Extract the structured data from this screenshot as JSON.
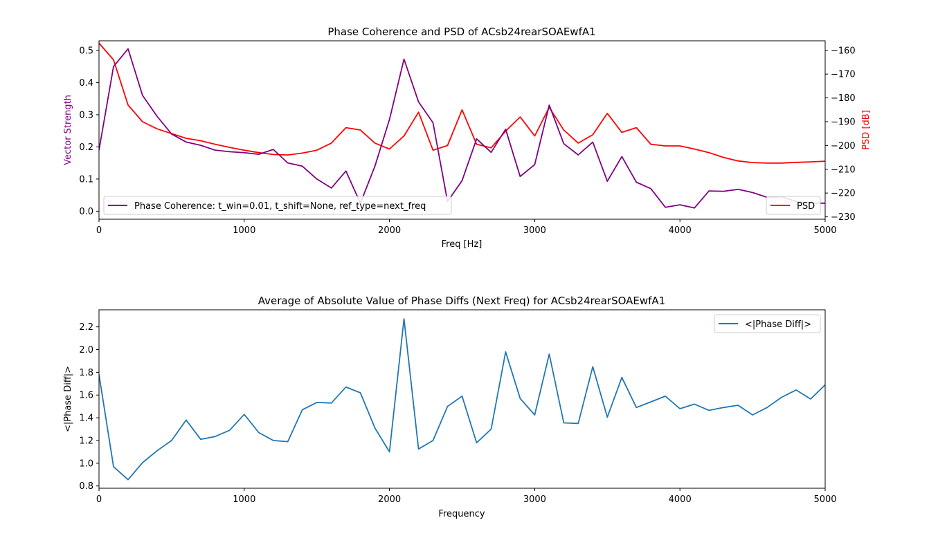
{
  "chart_data": [
    {
      "type": "line",
      "title": "Phase Coherence and PSD of ACsb24rearSOAEwfA1",
      "xlabel": "Freq [Hz]",
      "ylabel": "Vector Strength",
      "ylabel_right": "PSD [dB]",
      "xlim": [
        0,
        5000
      ],
      "ylim": [
        -0.025,
        0.53
      ],
      "ylim_right": [
        -231,
        -156
      ],
      "x_ticks": [
        0,
        1000,
        2000,
        3000,
        4000,
        5000
      ],
      "y_ticks": [
        0.0,
        0.1,
        0.2,
        0.3,
        0.4,
        0.5
      ],
      "y_ticks_right": [
        -160,
        -170,
        -180,
        -190,
        -200,
        -210,
        -220,
        -230
      ],
      "grid": false,
      "colors": {
        "coherence": "#800080",
        "psd": "#ff0000",
        "left_axis_label": "#800080",
        "right_axis_label": "#ff0000"
      },
      "series": [
        {
          "name": "Phase Coherence: t_win=0.01, t_shift=None, ref_type=next_freq",
          "axis": "left",
          "color": "#800080",
          "legend_loc": "lower left",
          "x": [
            0,
            100,
            200,
            300,
            400,
            500,
            600,
            700,
            800,
            900,
            1000,
            1100,
            1200,
            1300,
            1400,
            1500,
            1600,
            1700,
            1800,
            1900,
            2000,
            2100,
            2200,
            2300,
            2400,
            2500,
            2600,
            2700,
            2800,
            2900,
            3000,
            3100,
            3200,
            3300,
            3400,
            3500,
            3600,
            3700,
            3800,
            3900,
            4000,
            4100,
            4200,
            4300,
            4400,
            4500,
            4600,
            4700,
            4800,
            4900,
            5000
          ],
          "values": [
            0.19,
            0.45,
            0.505,
            0.36,
            0.295,
            0.24,
            0.215,
            0.205,
            0.19,
            0.185,
            0.182,
            0.177,
            0.192,
            0.15,
            0.14,
            0.1,
            0.072,
            0.125,
            0.025,
            0.14,
            0.285,
            0.473,
            0.34,
            0.275,
            0.03,
            0.095,
            0.225,
            0.183,
            0.255,
            0.108,
            0.145,
            0.33,
            0.21,
            0.175,
            0.215,
            0.093,
            0.17,
            0.09,
            0.07,
            0.012,
            0.02,
            0.01,
            0.063,
            0.062,
            0.068,
            0.058,
            0.043,
            0.045,
            0.03,
            0.025,
            0.025
          ]
        },
        {
          "name": "PSD",
          "axis": "right",
          "color": "#ff0000",
          "legend_loc": "lower right",
          "x": [
            0,
            100,
            200,
            300,
            400,
            500,
            600,
            700,
            800,
            900,
            1000,
            1100,
            1200,
            1300,
            1400,
            1500,
            1600,
            1700,
            1800,
            1900,
            2000,
            2100,
            2200,
            2300,
            2400,
            2500,
            2600,
            2700,
            2800,
            2900,
            3000,
            3100,
            3200,
            3300,
            3400,
            3500,
            3600,
            3700,
            3800,
            3900,
            4000,
            4100,
            4200,
            4300,
            4400,
            4500,
            4600,
            4700,
            4800,
            4900,
            5000
          ],
          "values": [
            -157,
            -164,
            -183,
            -190,
            -193,
            -195,
            -197,
            -198,
            -199.5,
            -200.8,
            -202,
            -203,
            -203.8,
            -204,
            -203.2,
            -202,
            -199,
            -192.5,
            -193.5,
            -199,
            -201.5,
            -196,
            -186,
            -202,
            -200,
            -185,
            -199.5,
            -201,
            -194,
            -188,
            -196,
            -184,
            -193.5,
            -199,
            -195.5,
            -186.5,
            -194.5,
            -192.5,
            -199.5,
            -200.2,
            -200.2,
            -201.5,
            -203,
            -205,
            -206.5,
            -207.2,
            -207.4,
            -207.4,
            -207.1,
            -206.9,
            -206.6
          ]
        }
      ]
    },
    {
      "type": "line",
      "title": "Average of Absolute Value of Phase Diffs (Next Freq) for ACsb24rearSOAEwfA1",
      "xlabel": "Frequency",
      "ylabel": "<|Phase Diff|>",
      "xlim": [
        0,
        5000
      ],
      "ylim": [
        0.78,
        2.35
      ],
      "x_ticks": [
        0,
        1000,
        2000,
        3000,
        4000,
        5000
      ],
      "y_ticks": [
        0.8,
        1.0,
        1.2,
        1.4,
        1.6,
        1.8,
        2.0,
        2.2
      ],
      "grid": false,
      "series": [
        {
          "name": "<|Phase Diff|>",
          "color": "#1f77b4",
          "legend_loc": "upper right",
          "x": [
            0,
            100,
            200,
            300,
            400,
            500,
            600,
            700,
            800,
            900,
            1000,
            1100,
            1200,
            1300,
            1400,
            1500,
            1600,
            1700,
            1800,
            1900,
            2000,
            2100,
            2200,
            2300,
            2400,
            2500,
            2600,
            2700,
            2800,
            2900,
            3000,
            3100,
            3200,
            3300,
            3400,
            3500,
            3600,
            3700,
            3800,
            3900,
            4000,
            4100,
            4200,
            4300,
            4400,
            4500,
            4600,
            4700,
            4800,
            4900,
            5000
          ],
          "values": [
            1.78,
            0.97,
            0.855,
            1.005,
            1.11,
            1.2,
            1.38,
            1.21,
            1.235,
            1.29,
            1.43,
            1.27,
            1.2,
            1.19,
            1.47,
            1.535,
            1.53,
            1.67,
            1.62,
            1.31,
            1.1,
            2.27,
            1.125,
            1.2,
            1.5,
            1.59,
            1.18,
            1.3,
            1.98,
            1.57,
            1.425,
            1.96,
            1.355,
            1.35,
            1.85,
            1.405,
            1.755,
            1.49,
            1.54,
            1.59,
            1.48,
            1.52,
            1.465,
            1.49,
            1.51,
            1.425,
            1.49,
            1.58,
            1.645,
            1.565,
            1.69
          ]
        }
      ]
    }
  ]
}
